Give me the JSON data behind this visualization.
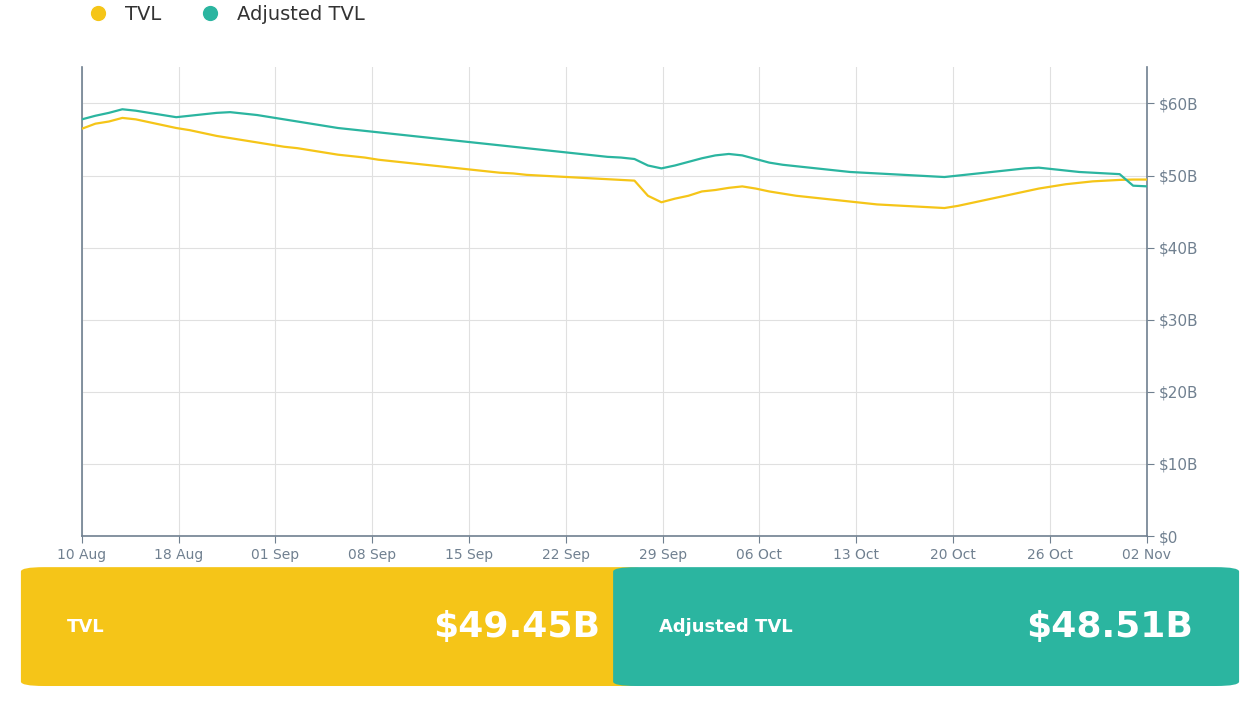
{
  "background_color": "#ffffff",
  "chart_bg_color": "#ffffff",
  "tvl_color": "#F5C518",
  "adj_tvl_color": "#2BB5A0",
  "tvl_label": "TVL",
  "adj_tvl_label": "Adjusted TVL",
  "tvl_value": "$49.45B",
  "adj_tvl_value": "$48.51B",
  "tvl_card_color": "#F5C518",
  "adj_tvl_card_color": "#2BB5A0",
  "yticks": [
    0,
    10,
    20,
    30,
    40,
    50,
    60
  ],
  "ytick_labels": [
    "$0",
    "$10B",
    "$20B",
    "$30B",
    "$40B",
    "$50B",
    "$60B"
  ],
  "xtick_labels": [
    "10 Aug",
    "18 Aug",
    "01 Sep",
    "08 Sep",
    "15 Sep",
    "22 Sep",
    "29 Sep",
    "06 Oct",
    "13 Oct",
    "20 Oct",
    "26 Oct",
    "02 Nov"
  ],
  "ylim": [
    0,
    65
  ],
  "line_width": 1.6,
  "tvl_data": [
    56.5,
    57.2,
    57.5,
    58.0,
    57.8,
    57.4,
    57.0,
    56.6,
    56.3,
    55.9,
    55.5,
    55.2,
    54.9,
    54.6,
    54.3,
    54.0,
    53.8,
    53.5,
    53.2,
    52.9,
    52.7,
    52.5,
    52.2,
    52.0,
    51.8,
    51.6,
    51.4,
    51.2,
    51.0,
    50.8,
    50.6,
    50.4,
    50.3,
    50.1,
    50.0,
    49.9,
    49.8,
    49.7,
    49.6,
    49.5,
    49.4,
    49.3,
    47.2,
    46.3,
    46.8,
    47.2,
    47.8,
    48.0,
    48.3,
    48.5,
    48.2,
    47.8,
    47.5,
    47.2,
    47.0,
    46.8,
    46.6,
    46.4,
    46.2,
    46.0,
    45.9,
    45.8,
    45.7,
    45.6,
    45.5,
    45.8,
    46.2,
    46.6,
    47.0,
    47.4,
    47.8,
    48.2,
    48.5,
    48.8,
    49.0,
    49.2,
    49.3,
    49.4,
    49.45,
    49.45
  ],
  "adj_tvl_data": [
    57.8,
    58.3,
    58.7,
    59.2,
    59.0,
    58.7,
    58.4,
    58.1,
    58.3,
    58.5,
    58.7,
    58.8,
    58.6,
    58.4,
    58.1,
    57.8,
    57.5,
    57.2,
    56.9,
    56.6,
    56.4,
    56.2,
    56.0,
    55.8,
    55.6,
    55.4,
    55.2,
    55.0,
    54.8,
    54.6,
    54.4,
    54.2,
    54.0,
    53.8,
    53.6,
    53.4,
    53.2,
    53.0,
    52.8,
    52.6,
    52.5,
    52.3,
    51.4,
    51.0,
    51.4,
    51.9,
    52.4,
    52.8,
    53.0,
    52.8,
    52.3,
    51.8,
    51.5,
    51.3,
    51.1,
    50.9,
    50.7,
    50.5,
    50.4,
    50.3,
    50.2,
    50.1,
    50.0,
    49.9,
    49.8,
    50.0,
    50.2,
    50.4,
    50.6,
    50.8,
    51.0,
    51.1,
    50.9,
    50.7,
    50.5,
    50.4,
    50.3,
    50.2,
    48.6,
    48.51
  ]
}
